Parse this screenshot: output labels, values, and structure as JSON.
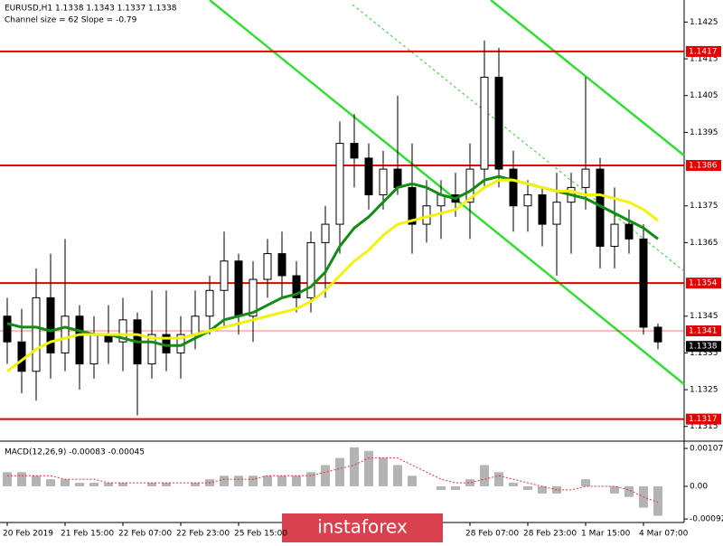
{
  "header": {
    "title": "EURUSD,H1  1.1338 1.1343 1.1337 1.1338",
    "channel": "Channel size = 62 Slope = -0.79"
  },
  "watermark": "instaforex",
  "chart_data": [
    {
      "type": "candlestick",
      "categories": [
        "20 Feb 2019",
        null,
        null,
        null,
        "21 Feb 15:00",
        null,
        null,
        null,
        "22 Feb 07:00",
        null,
        null,
        null,
        "22 Feb 23:00",
        null,
        null,
        null,
        "25 Feb 15:00",
        null,
        null,
        null,
        null,
        null,
        null,
        null,
        null,
        null,
        null,
        null,
        null,
        null,
        null,
        null,
        "28 Feb 07:00",
        null,
        null,
        null,
        "28 Feb 23:00",
        null,
        null,
        null,
        "1 Mar 15:00",
        null,
        null,
        null,
        "4 Mar 07:00",
        null
      ],
      "open": [
        1.1345,
        1.1338,
        1.133,
        1.135,
        1.1335,
        1.1345,
        1.1332,
        1.134,
        1.1338,
        1.1344,
        1.1332,
        1.134,
        1.1335,
        1.134,
        1.1345,
        1.1352,
        1.136,
        1.1345,
        1.1355,
        1.1362,
        1.1356,
        1.135,
        1.1365,
        1.137,
        1.1392,
        1.1388,
        1.1378,
        1.1385,
        1.138,
        1.137,
        1.1375,
        1.1378,
        1.1376,
        1.1385,
        1.141,
        1.1385,
        1.1375,
        1.1378,
        1.137,
        1.1376,
        1.138,
        1.1385,
        1.1364,
        1.137,
        1.1366,
        1.1342
      ],
      "high": [
        1.135,
        1.1347,
        1.1358,
        1.1362,
        1.1366,
        1.1348,
        1.1345,
        1.1348,
        1.135,
        1.1346,
        1.1352,
        1.1352,
        1.1345,
        1.1352,
        1.1356,
        1.1368,
        1.1362,
        1.136,
        1.1366,
        1.1368,
        1.136,
        1.1368,
        1.1375,
        1.1398,
        1.14,
        1.1392,
        1.139,
        1.1405,
        1.1392,
        1.1382,
        1.1382,
        1.1384,
        1.1392,
        1.142,
        1.1418,
        1.139,
        1.1382,
        1.138,
        1.1384,
        1.1384,
        1.141,
        1.1388,
        1.138,
        1.1374,
        1.137,
        1.1343
      ],
      "low": [
        1.1332,
        1.1324,
        1.1322,
        1.1328,
        1.133,
        1.1325,
        1.1328,
        1.1332,
        1.133,
        1.1318,
        1.1328,
        1.133,
        1.1328,
        1.1336,
        1.134,
        1.1342,
        1.134,
        1.1338,
        1.135,
        1.135,
        1.1346,
        1.1346,
        1.135,
        1.1362,
        1.138,
        1.1374,
        1.1374,
        1.1378,
        1.1362,
        1.1365,
        1.1366,
        1.1372,
        1.1366,
        1.138,
        1.138,
        1.1368,
        1.1368,
        1.1364,
        1.1356,
        1.1362,
        1.1374,
        1.1358,
        1.1358,
        1.1362,
        1.134,
        1.1336
      ],
      "close": [
        1.1338,
        1.133,
        1.135,
        1.1335,
        1.1345,
        1.1332,
        1.134,
        1.1338,
        1.1344,
        1.1332,
        1.134,
        1.1335,
        1.134,
        1.1345,
        1.1352,
        1.136,
        1.1345,
        1.1355,
        1.1362,
        1.1356,
        1.135,
        1.1365,
        1.137,
        1.1392,
        1.1388,
        1.1378,
        1.1385,
        1.138,
        1.137,
        1.1375,
        1.1378,
        1.1376,
        1.1385,
        1.141,
        1.1385,
        1.1375,
        1.1378,
        1.137,
        1.1376,
        1.138,
        1.1385,
        1.1364,
        1.137,
        1.1366,
        1.1342,
        1.1338
      ],
      "candle_color": "#000000",
      "series": [
        {
          "color": "#128c12",
          "values": [
            1.1343,
            1.1342,
            1.1342,
            1.1341,
            1.1342,
            1.1341,
            1.134,
            1.134,
            1.1339,
            1.1338,
            1.1338,
            1.1337,
            1.1337,
            1.1339,
            1.1341,
            1.1344,
            1.1345,
            1.1346,
            1.1348,
            1.135,
            1.1351,
            1.1353,
            1.1357,
            1.1364,
            1.1369,
            1.1372,
            1.1376,
            1.138,
            1.1381,
            1.138,
            1.1378,
            1.1377,
            1.1379,
            1.1382,
            1.1383,
            1.1382,
            1.1381,
            1.138,
            1.1379,
            1.1378,
            1.1377,
            1.1375,
            1.1373,
            1.1371,
            1.1369,
            1.1366
          ]
        },
        {
          "color": "#f2f20f",
          "values": [
            1.133,
            1.1333,
            1.1336,
            1.1338,
            1.1339,
            1.134,
            1.134,
            1.134,
            1.134,
            1.134,
            1.1339,
            1.1339,
            1.1339,
            1.134,
            1.1341,
            1.1342,
            1.1343,
            1.1344,
            1.1345,
            1.1346,
            1.1347,
            1.1349,
            1.1352,
            1.1356,
            1.136,
            1.1363,
            1.1367,
            1.137,
            1.1371,
            1.1372,
            1.1373,
            1.1374,
            1.1377,
            1.138,
            1.1382,
            1.1382,
            1.1381,
            1.138,
            1.1379,
            1.1379,
            1.1378,
            1.1378,
            1.1377,
            1.1376,
            1.1374,
            1.1371
          ]
        }
      ],
      "levels": [
        1.1417,
        1.1386,
        1.1354,
        1.1317
      ],
      "level_color": "#e00000",
      "bid_line": 1.1341,
      "current_price": 1.1338,
      "ylim": [
        1.1311,
        1.1431
      ],
      "yticks": [
        1.1425,
        1.1415,
        1.1405,
        1.1395,
        1.1375,
        1.1365,
        1.1345,
        1.1335,
        1.1325,
        1.1315
      ]
    },
    {
      "type": "macd",
      "title": "MACD(12,26,9) -0.00083 -0.00045",
      "series": [
        {
          "color": "#b4b4b4",
          "values": [
            0.0004,
            0.0004,
            0.0003,
            0.0002,
            0.0002,
            0.0001,
            0.0001,
            0.0001,
            0.0001,
            0,
            0.0001,
            0.0001,
            0,
            0.0001,
            0.0002,
            0.0003,
            0.0003,
            0.0003,
            0.0003,
            0.0003,
            0.0003,
            0.0004,
            0.0006,
            0.0008,
            0.0011,
            0.001,
            0.0008,
            0.0006,
            0.0003,
            0,
            -0.0001,
            -0.0001,
            0.0002,
            0.0006,
            0.0004,
            0.0001,
            -0.0001,
            -0.0002,
            -0.0002,
            0,
            0.0002,
            0,
            -0.0002,
            -0.0003,
            -0.0006,
            -0.00083
          ]
        },
        {
          "color": "#e03030",
          "values": [
            0.0003,
            0.0003,
            0.0003,
            0.0003,
            0.0002,
            0.0002,
            0.0002,
            0.0001,
            0.0001,
            0.0001,
            0.0001,
            0.0001,
            0.0001,
            0.0001,
            0.0001,
            0.0002,
            0.0002,
            0.0002,
            0.0003,
            0.0003,
            0.0003,
            0.0003,
            0.0004,
            0.0005,
            0.0006,
            0.0008,
            0.0008,
            0.0008,
            0.0006,
            0.0004,
            0.0002,
            0.0001,
            0.0001,
            0.0002,
            0.0003,
            0.0002,
            0.0001,
            0,
            -0.0001,
            -0.0001,
            0,
            0,
            0,
            -0.0001,
            -0.0003,
            -0.00045
          ]
        }
      ],
      "ylim": [
        -0.00102,
        0.00125
      ],
      "yticks": [
        0.00107,
        {
          "value": 0,
          "label": "0.00"
        },
        -0.00092
      ]
    }
  ]
}
